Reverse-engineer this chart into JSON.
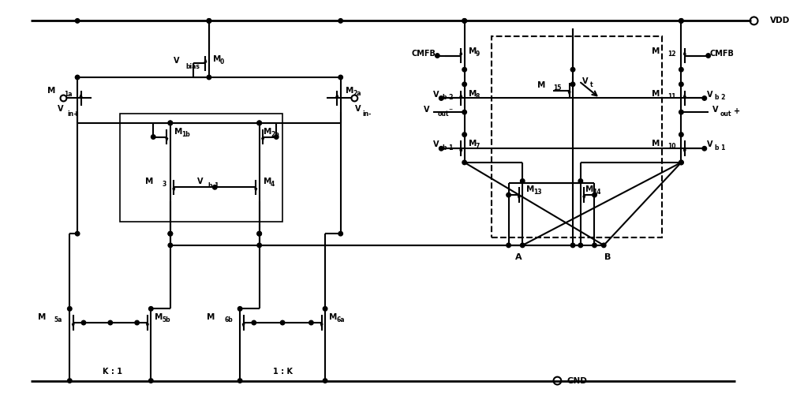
{
  "bg_color": "#ffffff",
  "line_color": "#000000",
  "lw": 1.5,
  "figsize": [
    10.0,
    5.07
  ],
  "dpi": 100,
  "xlim": [
    0,
    100
  ],
  "ylim": [
    0,
    50.7
  ]
}
